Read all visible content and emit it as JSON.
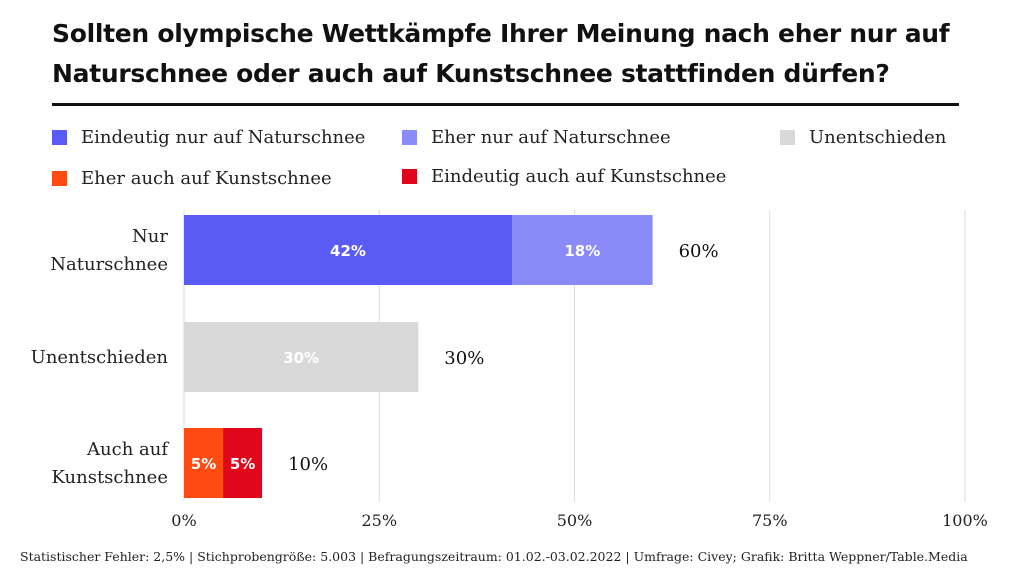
{
  "title": "Sollten olympische Wettkämpfe Ihrer Meinung nach eher nur auf Naturschnee oder auch auf Kunstschnee stattfinden dürfen?",
  "legend": [
    {
      "label": "Eindeutig nur auf Naturschnee",
      "color": "#5A5AF5"
    },
    {
      "label": "Eher nur auf Naturschnee",
      "color": "#8A8AF8"
    },
    {
      "label": "Unentschieden",
      "color": "#D9D9D9"
    },
    {
      "label": "Eher auch auf Kunstschnee",
      "color": "#FF4B12"
    },
    {
      "label": "Eindeutig auch auf Kunstschnee",
      "color": "#E0061C"
    }
  ],
  "chart_data": {
    "type": "bar",
    "orientation": "horizontal",
    "stacked": true,
    "title": "Sollten olympische Wettkämpfe Ihrer Meinung nach eher nur auf Naturschnee oder auch auf Kunstschnee stattfinden dürfen?",
    "categories": [
      [
        "Nur",
        "Naturschnee"
      ],
      [
        "Unentschieden"
      ],
      [
        "Auch auf",
        "Kunstschnee"
      ]
    ],
    "series": [
      {
        "name": "Eindeutig nur auf Naturschnee",
        "color": "#5A5AF5",
        "values": [
          42,
          null,
          null
        ],
        "labels": [
          "42%",
          null,
          null
        ]
      },
      {
        "name": "Eher nur auf Naturschnee",
        "color": "#8A8AF8",
        "values": [
          18,
          null,
          null
        ],
        "labels": [
          "18%",
          null,
          null
        ]
      },
      {
        "name": "Unentschieden",
        "color": "#D9D9D9",
        "values": [
          null,
          30,
          null
        ],
        "labels": [
          null,
          "30%",
          null
        ]
      },
      {
        "name": "Eher auch auf Kunstschnee",
        "color": "#FF4B12",
        "values": [
          null,
          null,
          5
        ],
        "labels": [
          null,
          null,
          "5%"
        ]
      },
      {
        "name": "Eindeutig auch auf Kunstschnee",
        "color": "#E0061C",
        "values": [
          null,
          null,
          5
        ],
        "labels": [
          null,
          null,
          "5%"
        ]
      }
    ],
    "totals": [
      60,
      30,
      10
    ],
    "total_labels": [
      "60%",
      "30%",
      "10%"
    ],
    "xlim": [
      0,
      100
    ],
    "xticks": [
      0,
      25,
      50,
      75,
      100
    ],
    "xtick_labels": [
      "0%",
      "25%",
      "50%",
      "75%",
      "100%"
    ],
    "grid": "vertical",
    "legend_position": "top"
  },
  "footer": "Statistischer Fehler: 2,5% | Stichprobengröße: 5.003 | Befragungszeitraum: 01.02.-03.02.2022 | Umfrage: Civey; Grafik: Britta Weppner/Table.Media"
}
